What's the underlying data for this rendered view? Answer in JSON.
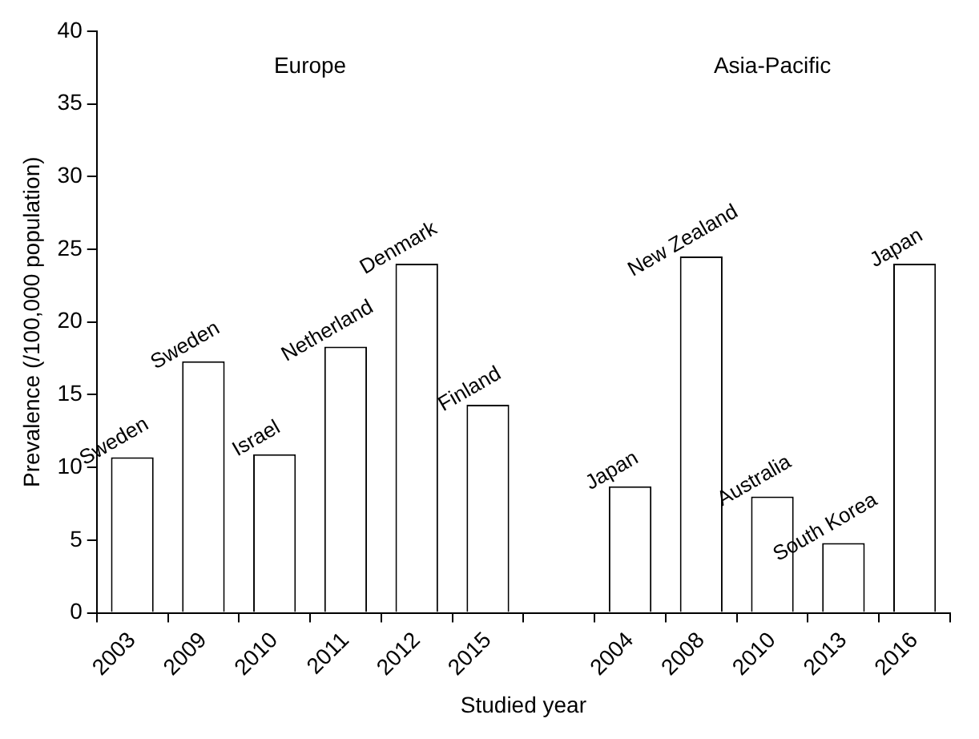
{
  "chart_data": {
    "type": "bar",
    "xlabel": "Studied year",
    "ylabel": "Prevalence (/100,000 population)",
    "categories": [
      "2003",
      "2009",
      "2010",
      "2011",
      "2012",
      "2015",
      null,
      "2004",
      "2008",
      "2010",
      "2013",
      "2016"
    ],
    "values": [
      10.7,
      17.3,
      10.9,
      18.3,
      24,
      14.3,
      null,
      8.7,
      24.5,
      8,
      4.8,
      24
    ],
    "value_labels": [
      "Sweden",
      "Sweden",
      "Israel",
      "Netherland",
      "Denmark",
      "Finland",
      null,
      "Japan",
      "New Zealand",
      "Australia",
      "South Korea",
      "Japan"
    ],
    "color": "#ffffff",
    "ylim": [
      0,
      40
    ],
    "yticks": [
      0,
      5,
      10,
      15,
      20,
      25,
      30,
      35,
      40
    ],
    "grid": false,
    "legend": false,
    "annotations": [
      "Europe",
      "Asia-Pacific"
    ]
  }
}
